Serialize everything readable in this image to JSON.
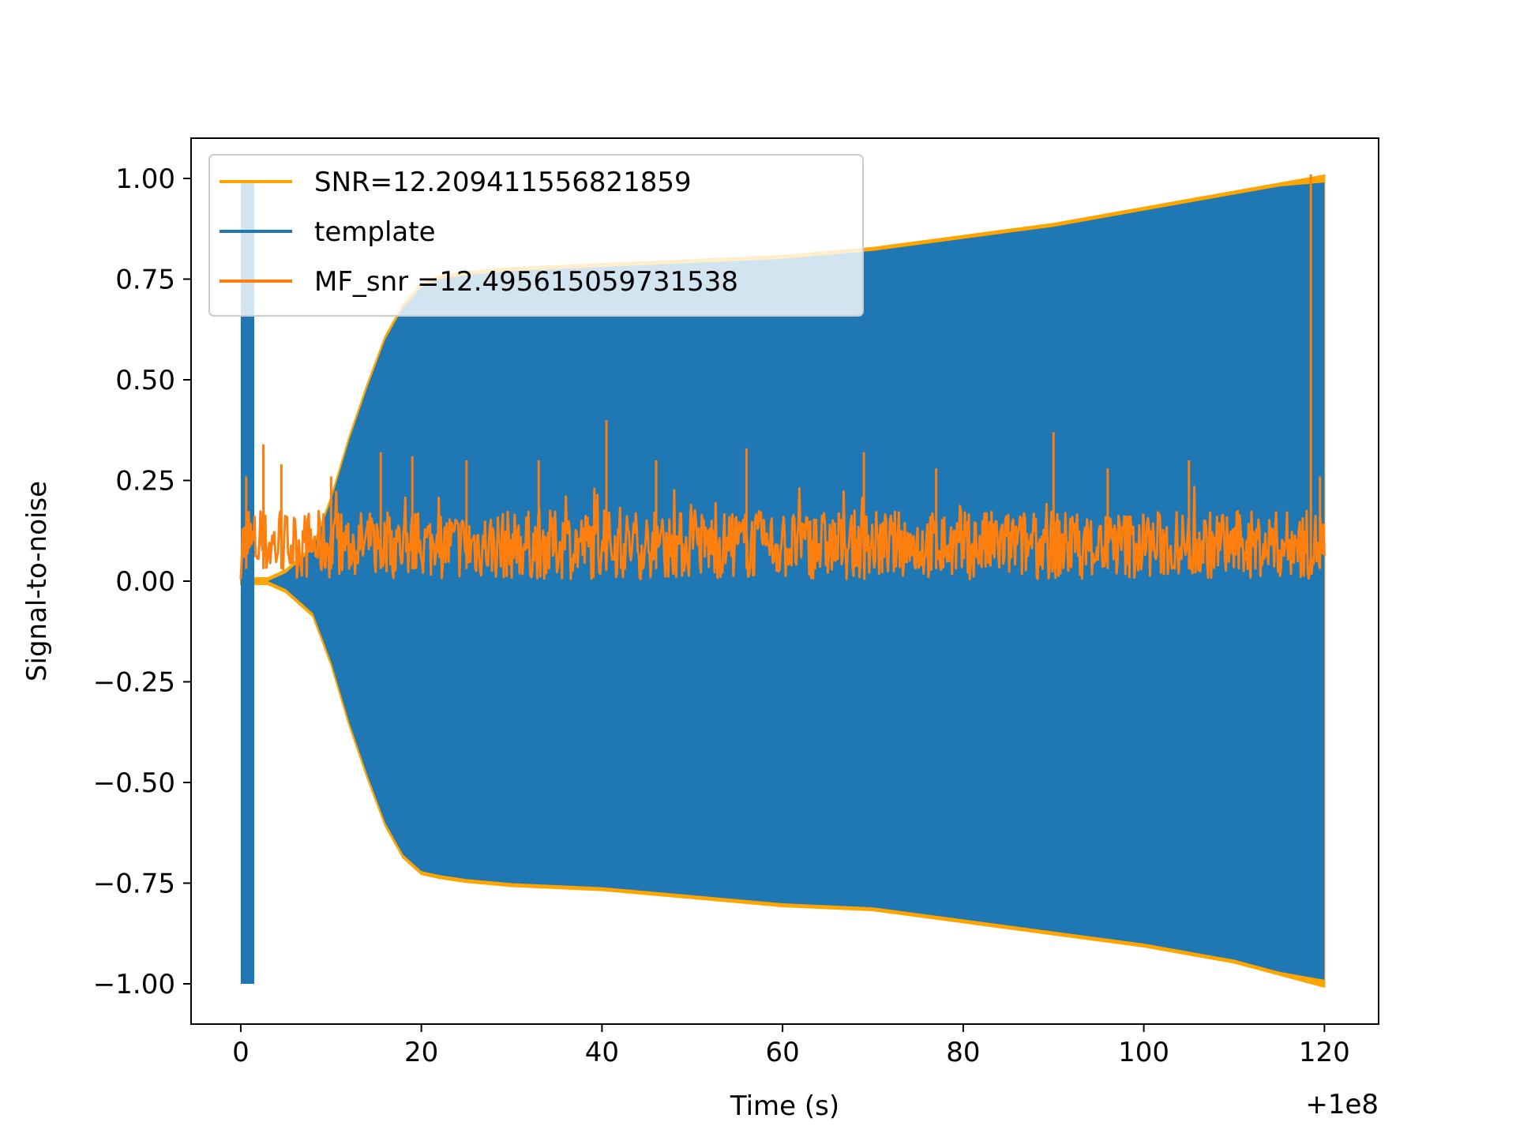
{
  "chart_data": {
    "type": "line",
    "xlabel": "Time (s)",
    "ylabel": "Signal-to-noise",
    "x_offset_label": "+1e8",
    "xlim": [
      -5.5,
      126
    ],
    "ylim": [
      -1.1,
      1.1
    ],
    "x_ticks": [
      0,
      20,
      40,
      60,
      80,
      100,
      120
    ],
    "x_tick_labels": [
      "0",
      "20",
      "40",
      "60",
      "80",
      "100",
      "120"
    ],
    "y_ticks": [
      1.0,
      0.75,
      0.5,
      0.25,
      0.0,
      -0.25,
      -0.5,
      -0.75,
      -1.0
    ],
    "y_tick_labels": [
      "1.00",
      "0.75",
      "0.50",
      "0.25",
      "0.00",
      "−0.25",
      "−0.50",
      "−0.75",
      "−1.00"
    ],
    "grid": false,
    "legend_position": "upper-left",
    "series": [
      {
        "name": "SNR=12.209411556821859",
        "color": "#ffa500",
        "kind": "envelope",
        "x": [
          0,
          1.5,
          3,
          5,
          8,
          10,
          12,
          14,
          16,
          18,
          20,
          22,
          25,
          30,
          40,
          50,
          60,
          70,
          80,
          90,
          100,
          110,
          115,
          120
        ],
        "upper": [
          0.0,
          0.0,
          0.0,
          0.02,
          0.08,
          0.2,
          0.35,
          0.48,
          0.6,
          0.68,
          0.73,
          0.75,
          0.76,
          0.77,
          0.78,
          0.79,
          0.8,
          0.82,
          0.85,
          0.88,
          0.92,
          0.96,
          0.98,
          1.0
        ],
        "lower": [
          0.0,
          0.0,
          0.0,
          -0.02,
          -0.08,
          -0.2,
          -0.35,
          -0.48,
          -0.6,
          -0.68,
          -0.72,
          -0.73,
          -0.74,
          -0.75,
          -0.76,
          -0.78,
          -0.8,
          -0.81,
          -0.84,
          -0.87,
          -0.9,
          -0.94,
          -0.97,
          -1.0
        ]
      },
      {
        "name": "template",
        "color": "#1f77b4",
        "kind": "envelope",
        "x": [
          0,
          1.5,
          3,
          5,
          8,
          10,
          12,
          14,
          16,
          18,
          20,
          22,
          25,
          30,
          40,
          50,
          60,
          70,
          80,
          90,
          100,
          110,
          115,
          120
        ],
        "upper": [
          0.0,
          0.0,
          0.0,
          0.02,
          0.08,
          0.2,
          0.35,
          0.48,
          0.6,
          0.68,
          0.73,
          0.75,
          0.76,
          0.77,
          0.78,
          0.79,
          0.8,
          0.82,
          0.85,
          0.88,
          0.92,
          0.96,
          0.98,
          0.99
        ],
        "lower": [
          0.0,
          0.0,
          0.0,
          -0.02,
          -0.08,
          -0.2,
          -0.35,
          -0.48,
          -0.6,
          -0.68,
          -0.72,
          -0.73,
          -0.74,
          -0.75,
          -0.76,
          -0.78,
          -0.8,
          -0.81,
          -0.84,
          -0.87,
          -0.9,
          -0.94,
          -0.97,
          -0.99
        ],
        "spike": {
          "x": [
            0,
            1.5
          ],
          "upper": 0.99,
          "lower": -1.0
        }
      },
      {
        "name": " MF_snr =12.495615059731538",
        "color": "#ff7f0e",
        "kind": "noise",
        "baseline_range": [
          0.0,
          0.2
        ],
        "peaks": [
          [
            0.6,
            0.26
          ],
          [
            2.5,
            0.34
          ],
          [
            4.5,
            0.29
          ],
          [
            10,
            0.26
          ],
          [
            15.5,
            0.32
          ],
          [
            19,
            0.31
          ],
          [
            25,
            0.3
          ],
          [
            33,
            0.3
          ],
          [
            40.5,
            0.4
          ],
          [
            46,
            0.3
          ],
          [
            56,
            0.33
          ],
          [
            69,
            0.32
          ],
          [
            77,
            0.28
          ],
          [
            90,
            0.37
          ],
          [
            96,
            0.28
          ],
          [
            105,
            0.3
          ],
          [
            118.5,
            1.01
          ],
          [
            119.5,
            0.26
          ]
        ]
      }
    ]
  }
}
